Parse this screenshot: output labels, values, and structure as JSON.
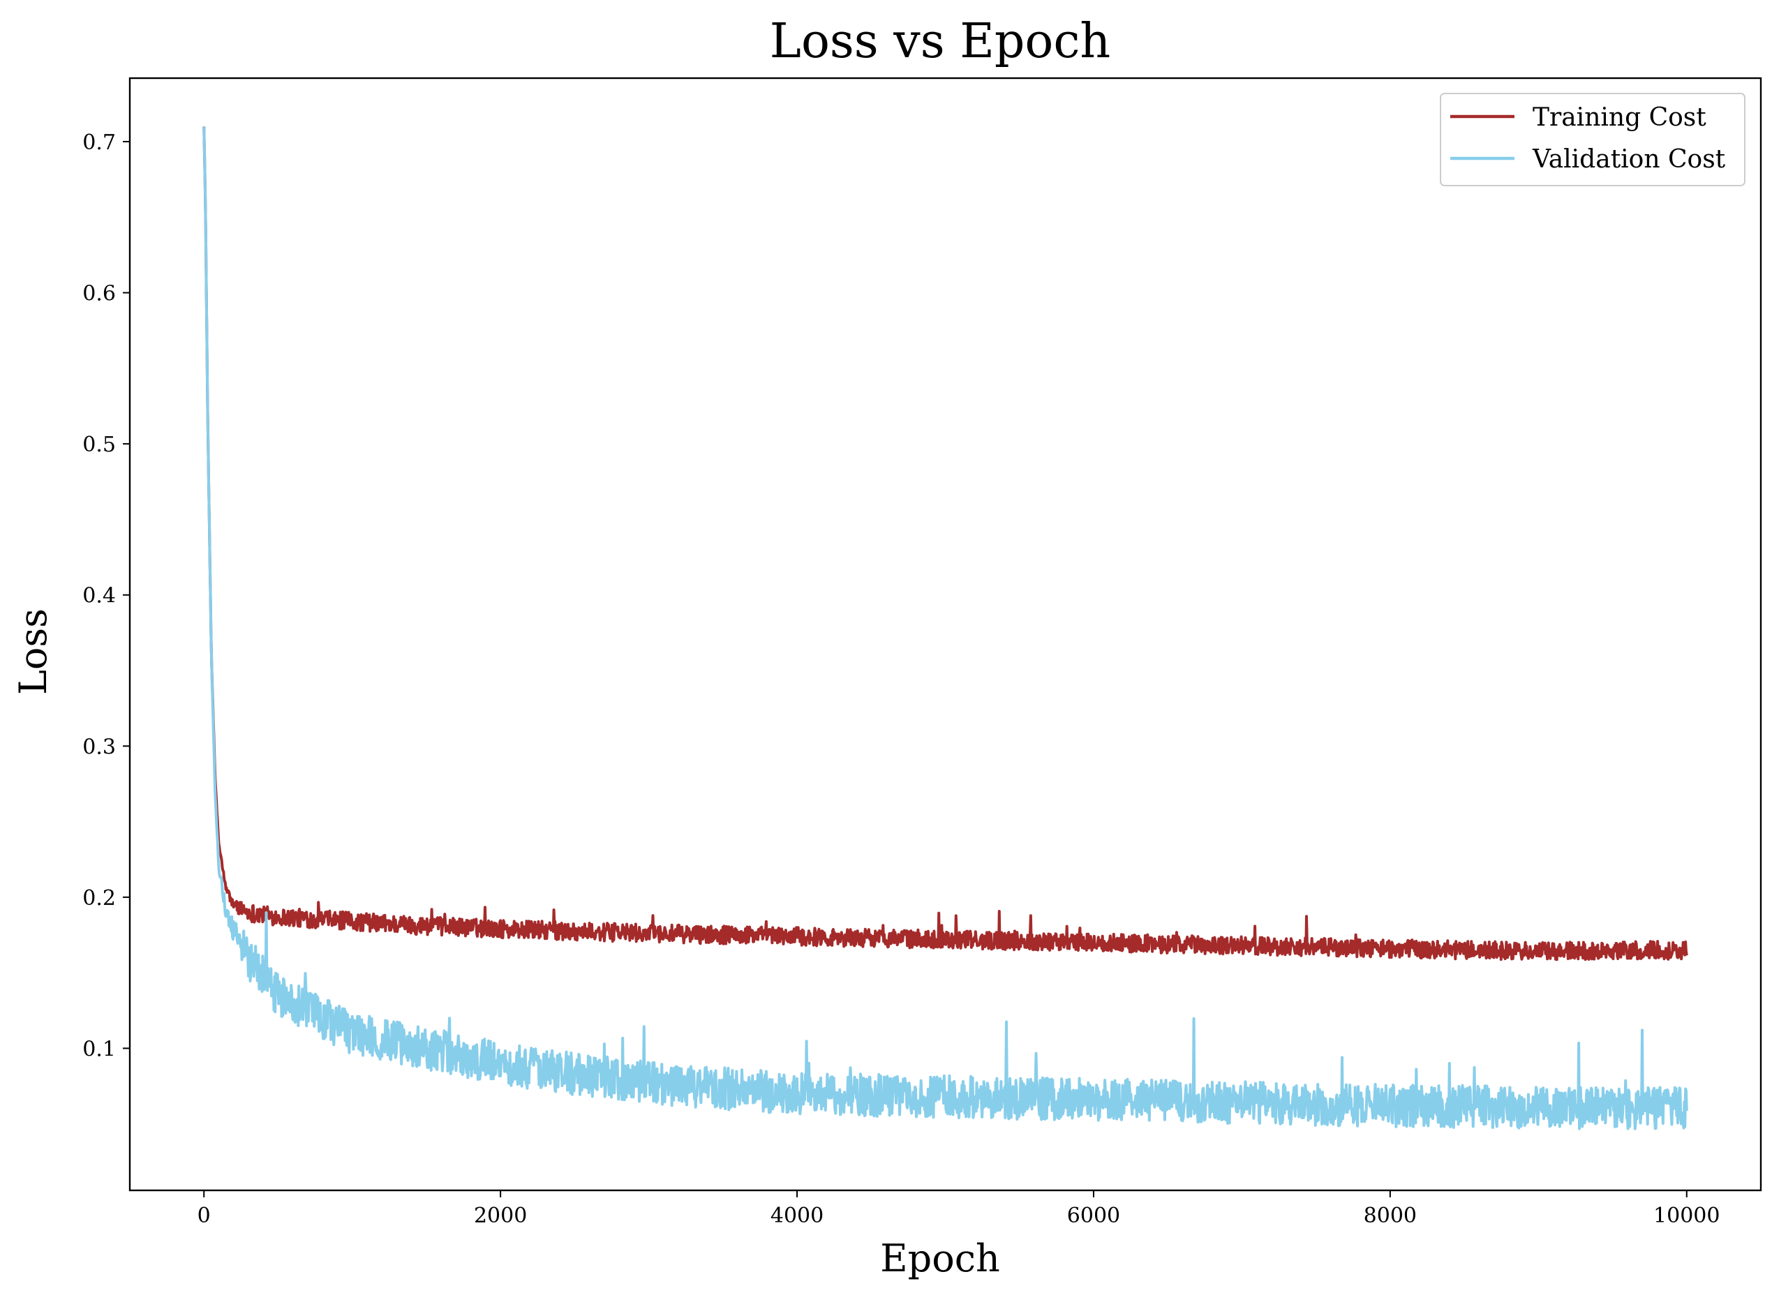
{
  "chart_data": {
    "type": "line",
    "title": "Loss vs Epoch",
    "xlabel": "Epoch",
    "ylabel": "Loss",
    "xlim": [
      -500,
      10500
    ],
    "ylim": [
      0.006,
      0.742
    ],
    "xticks": [
      0,
      2000,
      4000,
      6000,
      8000,
      10000
    ],
    "xtick_labels": [
      "0",
      "2000",
      "4000",
      "6000",
      "8000",
      "10000"
    ],
    "yticks": [
      0.1,
      0.2,
      0.3,
      0.4,
      0.5,
      0.6,
      0.7
    ],
    "ytick_labels": [
      "0.1",
      "0.2",
      "0.3",
      "0.4",
      "0.5",
      "0.6",
      "0.7"
    ],
    "grid": false,
    "legend_position": "top-right",
    "series": [
      {
        "name": "Training Cost",
        "color": "#a52a2a",
        "x": [
          0,
          10,
          25,
          50,
          75,
          100,
          150,
          200,
          300,
          500,
          1000,
          1500,
          2000,
          3000,
          4000,
          5000,
          6000,
          7000,
          8000,
          9000,
          10000
        ],
        "y": [
          0.71,
          0.66,
          0.52,
          0.36,
          0.28,
          0.235,
          0.205,
          0.195,
          0.19,
          0.187,
          0.184,
          0.181,
          0.179,
          0.176,
          0.174,
          0.172,
          0.17,
          0.168,
          0.166,
          0.164,
          0.165
        ],
        "noise": 0.006,
        "noise_at_start": 0.0
      },
      {
        "name": "Validation Cost",
        "color": "#87ceeb",
        "x": [
          0,
          10,
          25,
          50,
          75,
          100,
          150,
          200,
          300,
          500,
          700,
          1000,
          1500,
          2000,
          2500,
          3000,
          4000,
          5000,
          6000,
          7000,
          8000,
          9000,
          10000
        ],
        "y": [
          0.71,
          0.66,
          0.52,
          0.36,
          0.27,
          0.22,
          0.19,
          0.178,
          0.16,
          0.135,
          0.125,
          0.11,
          0.1,
          0.09,
          0.083,
          0.077,
          0.07,
          0.068,
          0.066,
          0.064,
          0.062,
          0.061,
          0.06
        ],
        "noise": 0.014,
        "noise_at_start": 0.0
      }
    ]
  }
}
